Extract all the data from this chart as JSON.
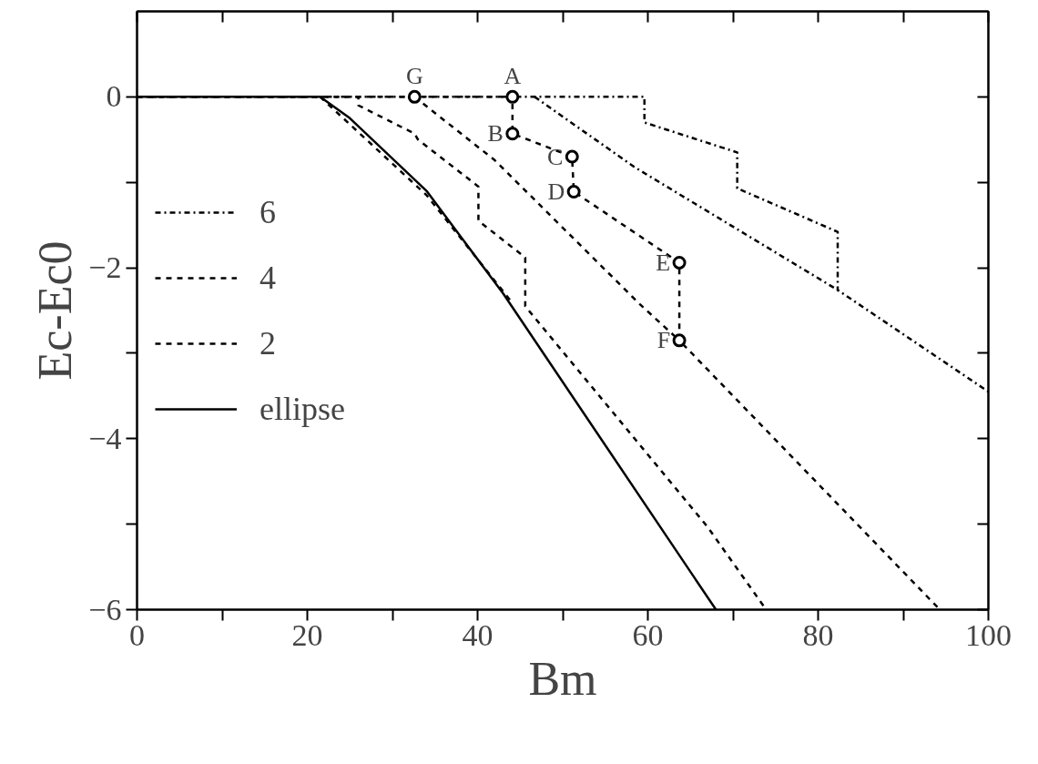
{
  "chart_data": {
    "type": "line",
    "xlabel": "Bm",
    "ylabel": "Ec-Ec0",
    "xlim": [
      0,
      100
    ],
    "ylim": [
      -6,
      1
    ],
    "xticks": [
      0,
      {
        "value": 10,
        "label": null
      },
      20,
      {
        "value": 30,
        "label": null
      },
      40,
      {
        "value": 50,
        "label": null
      },
      60,
      {
        "value": 70,
        "label": null
      },
      80,
      {
        "value": 90,
        "label": null
      },
      100
    ],
    "yticks": [
      -6,
      {
        "value": -5,
        "label": null
      },
      -4,
      {
        "value": -3,
        "label": null
      },
      -2,
      {
        "value": -1,
        "label": null
      },
      0
    ],
    "grid": false,
    "legend": "left",
    "series": [
      {
        "name": "6",
        "color": "#000000",
        "line_style": "dashdot",
        "x": [
          0,
          59.6,
          59.6,
          70.5,
          70.5,
          82.3,
          82.3,
          100
        ],
        "values": [
          0,
          0,
          -0.3,
          -0.65,
          -1.07,
          -1.58,
          -2.26,
          -3.45
        ]
      },
      {
        "color": "#000000",
        "line_style": "dashdot",
        "x": [
          46.7,
          58.4,
          82.3
        ],
        "values": [
          0,
          -0.82,
          -2.26
        ]
      },
      {
        "name": "4",
        "color": "#000000",
        "line_style": "dashed",
        "x": [
          0,
          32.6,
          44.1,
          44.1,
          51.1,
          51.3,
          63.7,
          63.7,
          94.3
        ],
        "values": [
          0,
          0,
          0,
          -0.43,
          -0.7,
          -1.11,
          -1.94,
          -2.85,
          -6
        ]
      },
      {
        "color": "#000000",
        "line_style": "dashed",
        "x": [
          32.6,
          42,
          59.1,
          63.7
        ],
        "values": [
          0,
          -0.74,
          -2.43,
          -2.85
        ]
      },
      {
        "name": "2",
        "color": "#000000",
        "line_style": "dashed",
        "x": [
          0,
          26,
          26,
          32.6,
          33,
          40.1,
          40.1,
          45.6,
          45.6,
          67,
          73.9
        ],
        "values": [
          0,
          0,
          -0.1,
          -0.43,
          -0.5,
          -1.05,
          -1.45,
          -1.88,
          -2.45,
          -5.03,
          -6
        ]
      },
      {
        "color": "#000000",
        "line_style": "dashed",
        "x": [
          21.5,
          34,
          44
        ],
        "values": [
          0,
          -1.15,
          -2.4
        ]
      },
      {
        "name": "ellipse",
        "color": "#000000",
        "line_style": "solid",
        "x": [
          0,
          21.5,
          25,
          34,
          43,
          68
        ],
        "values": [
          0,
          0,
          -0.25,
          -1.1,
          -2.3,
          -6
        ]
      },
      {
        "type": "scatter",
        "marker": "circle",
        "color": "#000000",
        "x": [
          32.6,
          44.1,
          44.1,
          51.1,
          51.3,
          63.7,
          63.7
        ],
        "values": [
          0,
          0,
          -0.43,
          -0.7,
          -1.11,
          -1.94,
          -2.85
        ]
      }
    ],
    "annotations": [
      {
        "text": "G",
        "x": 32.6,
        "y": 0
      },
      {
        "text": "A",
        "x": 44.1,
        "y": 0
      },
      {
        "text": "B",
        "x": 44.1,
        "y": -0.43
      },
      {
        "text": "C",
        "x": 51.1,
        "y": -0.7
      },
      {
        "text": "D",
        "x": 51.3,
        "y": -1.11
      },
      {
        "text": "E",
        "x": 63.7,
        "y": -1.94
      },
      {
        "text": "F",
        "x": 63.7,
        "y": -2.85
      }
    ]
  }
}
